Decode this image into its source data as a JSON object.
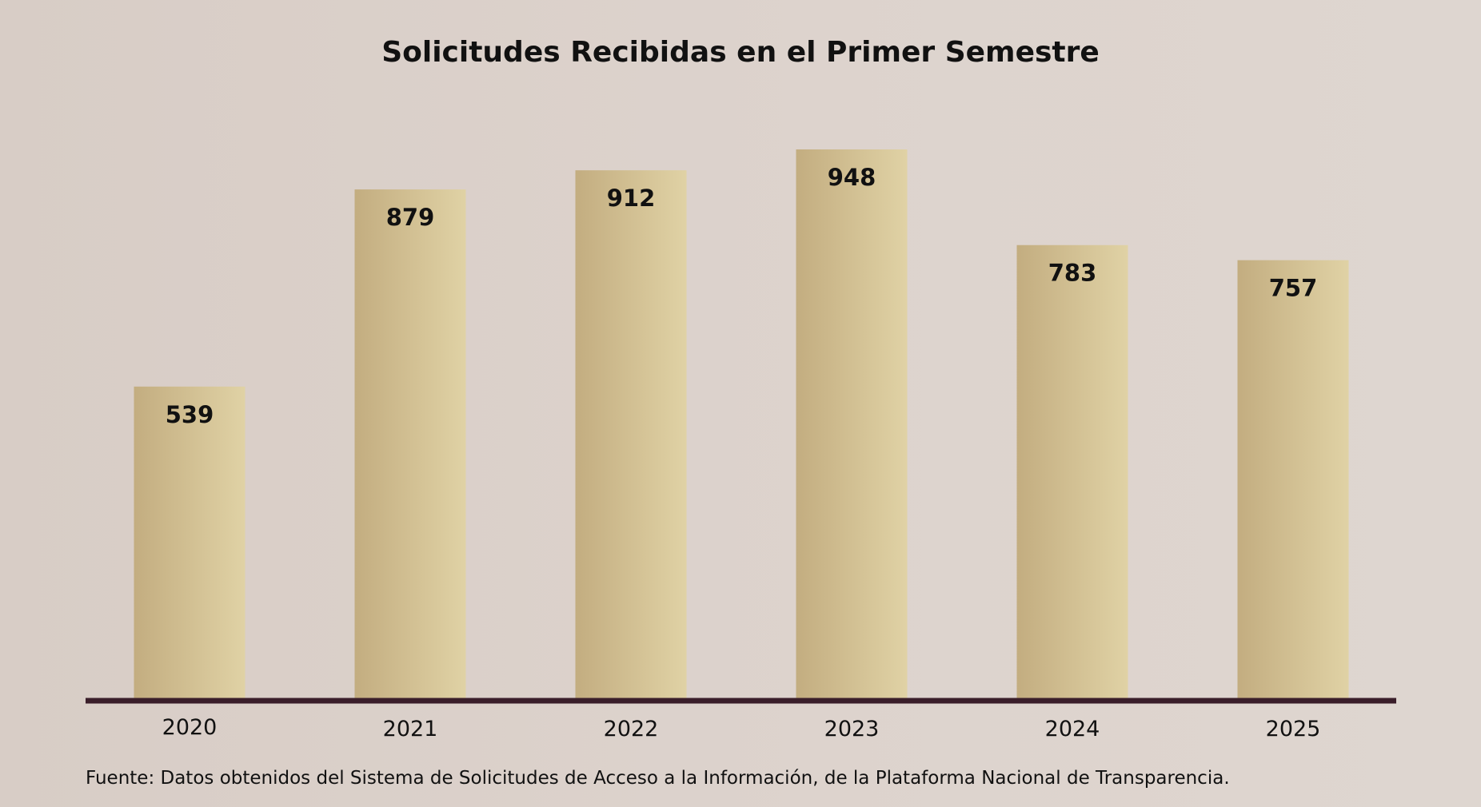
{
  "chart_data": {
    "type": "bar",
    "title": "Solicitudes Recibidas en el Primer Semestre",
    "categories": [
      "2020",
      "2021",
      "2022",
      "2023",
      "2024",
      "2025"
    ],
    "values": [
      539,
      879,
      912,
      948,
      783,
      757
    ],
    "xlabel": "",
    "ylabel": "",
    "ylim": [
      0,
      948
    ],
    "grid": false,
    "legend": "none",
    "data_labels": [
      "539",
      "879",
      "912",
      "948",
      "783",
      "757"
    ]
  },
  "footer": {
    "source": "Fuente: Datos obtenidos del Sistema de Solicitudes de Acceso a la Información, de la Plataforma Nacional de Transparencia."
  },
  "colors": {
    "bar_dark": "#c3ad80",
    "bar_light": "#e0d2a5",
    "axis": "#3a1e2a",
    "text": "#111111"
  }
}
